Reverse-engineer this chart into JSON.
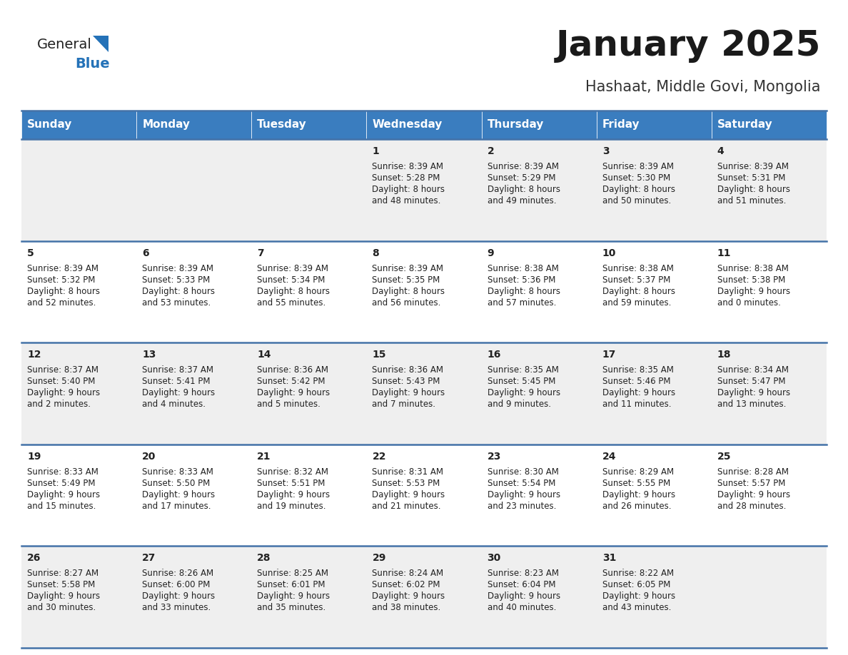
{
  "title": "January 2025",
  "subtitle": "Hashaat, Middle Govi, Mongolia",
  "header_bg": "#3a7dbf",
  "header_text_color": "#ffffff",
  "weekdays": [
    "Sunday",
    "Monday",
    "Tuesday",
    "Wednesday",
    "Thursday",
    "Friday",
    "Saturday"
  ],
  "row_bg_odd": "#efefef",
  "row_bg_even": "#ffffff",
  "cell_border_color": "#4472a8",
  "day_number_color": "#222222",
  "day_text_color": "#222222",
  "calendar": [
    [
      null,
      null,
      null,
      {
        "day": 1,
        "sunrise": "8:39 AM",
        "sunset": "5:28 PM",
        "daylight": "8 hours and 48 minutes."
      },
      {
        "day": 2,
        "sunrise": "8:39 AM",
        "sunset": "5:29 PM",
        "daylight": "8 hours and 49 minutes."
      },
      {
        "day": 3,
        "sunrise": "8:39 AM",
        "sunset": "5:30 PM",
        "daylight": "8 hours and 50 minutes."
      },
      {
        "day": 4,
        "sunrise": "8:39 AM",
        "sunset": "5:31 PM",
        "daylight": "8 hours and 51 minutes."
      }
    ],
    [
      {
        "day": 5,
        "sunrise": "8:39 AM",
        "sunset": "5:32 PM",
        "daylight": "8 hours and 52 minutes."
      },
      {
        "day": 6,
        "sunrise": "8:39 AM",
        "sunset": "5:33 PM",
        "daylight": "8 hours and 53 minutes."
      },
      {
        "day": 7,
        "sunrise": "8:39 AM",
        "sunset": "5:34 PM",
        "daylight": "8 hours and 55 minutes."
      },
      {
        "day": 8,
        "sunrise": "8:39 AM",
        "sunset": "5:35 PM",
        "daylight": "8 hours and 56 minutes."
      },
      {
        "day": 9,
        "sunrise": "8:38 AM",
        "sunset": "5:36 PM",
        "daylight": "8 hours and 57 minutes."
      },
      {
        "day": 10,
        "sunrise": "8:38 AM",
        "sunset": "5:37 PM",
        "daylight": "8 hours and 59 minutes."
      },
      {
        "day": 11,
        "sunrise": "8:38 AM",
        "sunset": "5:38 PM",
        "daylight": "9 hours and 0 minutes."
      }
    ],
    [
      {
        "day": 12,
        "sunrise": "8:37 AM",
        "sunset": "5:40 PM",
        "daylight": "9 hours and 2 minutes."
      },
      {
        "day": 13,
        "sunrise": "8:37 AM",
        "sunset": "5:41 PM",
        "daylight": "9 hours and 4 minutes."
      },
      {
        "day": 14,
        "sunrise": "8:36 AM",
        "sunset": "5:42 PM",
        "daylight": "9 hours and 5 minutes."
      },
      {
        "day": 15,
        "sunrise": "8:36 AM",
        "sunset": "5:43 PM",
        "daylight": "9 hours and 7 minutes."
      },
      {
        "day": 16,
        "sunrise": "8:35 AM",
        "sunset": "5:45 PM",
        "daylight": "9 hours and 9 minutes."
      },
      {
        "day": 17,
        "sunrise": "8:35 AM",
        "sunset": "5:46 PM",
        "daylight": "9 hours and 11 minutes."
      },
      {
        "day": 18,
        "sunrise": "8:34 AM",
        "sunset": "5:47 PM",
        "daylight": "9 hours and 13 minutes."
      }
    ],
    [
      {
        "day": 19,
        "sunrise": "8:33 AM",
        "sunset": "5:49 PM",
        "daylight": "9 hours and 15 minutes."
      },
      {
        "day": 20,
        "sunrise": "8:33 AM",
        "sunset": "5:50 PM",
        "daylight": "9 hours and 17 minutes."
      },
      {
        "day": 21,
        "sunrise": "8:32 AM",
        "sunset": "5:51 PM",
        "daylight": "9 hours and 19 minutes."
      },
      {
        "day": 22,
        "sunrise": "8:31 AM",
        "sunset": "5:53 PM",
        "daylight": "9 hours and 21 minutes."
      },
      {
        "day": 23,
        "sunrise": "8:30 AM",
        "sunset": "5:54 PM",
        "daylight": "9 hours and 23 minutes."
      },
      {
        "day": 24,
        "sunrise": "8:29 AM",
        "sunset": "5:55 PM",
        "daylight": "9 hours and 26 minutes."
      },
      {
        "day": 25,
        "sunrise": "8:28 AM",
        "sunset": "5:57 PM",
        "daylight": "9 hours and 28 minutes."
      }
    ],
    [
      {
        "day": 26,
        "sunrise": "8:27 AM",
        "sunset": "5:58 PM",
        "daylight": "9 hours and 30 minutes."
      },
      {
        "day": 27,
        "sunrise": "8:26 AM",
        "sunset": "6:00 PM",
        "daylight": "9 hours and 33 minutes."
      },
      {
        "day": 28,
        "sunrise": "8:25 AM",
        "sunset": "6:01 PM",
        "daylight": "9 hours and 35 minutes."
      },
      {
        "day": 29,
        "sunrise": "8:24 AM",
        "sunset": "6:02 PM",
        "daylight": "9 hours and 38 minutes."
      },
      {
        "day": 30,
        "sunrise": "8:23 AM",
        "sunset": "6:04 PM",
        "daylight": "9 hours and 40 minutes."
      },
      {
        "day": 31,
        "sunrise": "8:22 AM",
        "sunset": "6:05 PM",
        "daylight": "9 hours and 43 minutes."
      },
      null
    ]
  ],
  "logo_triangle_color": "#2472b8",
  "title_fontsize": 36,
  "subtitle_fontsize": 15,
  "header_fontsize": 11,
  "day_num_fontsize": 10,
  "day_text_fontsize": 8.5
}
